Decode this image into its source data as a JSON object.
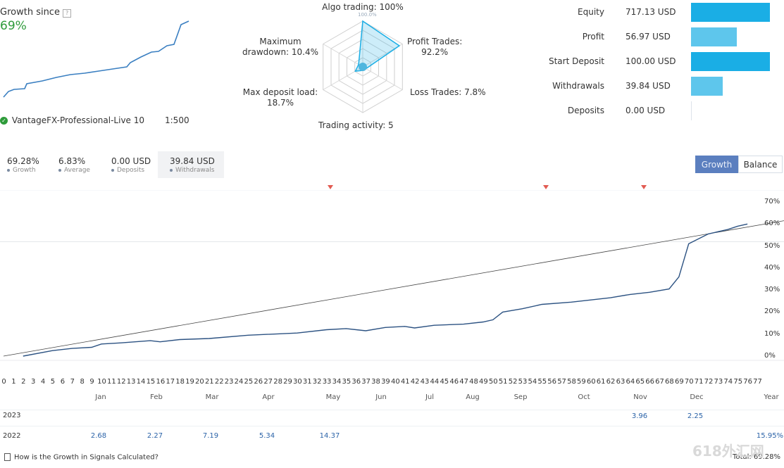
{
  "summary": {
    "growth_title": "Growth since",
    "growth_value": "69%",
    "account_name": "VantageFX-Professional-Live 10",
    "leverage": "1:500"
  },
  "radar": {
    "algo": "Algo trading: 100%",
    "algo_center": "100.0%",
    "profit_trades": "Profit Trades:\n92.2%",
    "loss_trades": "Loss Trades: 7.8%",
    "trading_activity": "Trading activity: 5",
    "max_deposit_load": "Max deposit load:\n18.7%",
    "max_drawdown": "Maximum\ndrawdown: 10.4%",
    "values": [
      1.0,
      0.922,
      0.078,
      0.05,
      0.187,
      0.104
    ]
  },
  "stats": [
    {
      "label": "Equity",
      "value": "717.13 USD",
      "fill": 1.0
    },
    {
      "label": "Profit",
      "value": "56.97 USD",
      "fill": 0.58
    },
    {
      "label": "Start Deposit",
      "value": "100.00 USD",
      "fill": 1.0
    },
    {
      "label": "Withdrawals",
      "value": "39.84 USD",
      "fill": 0.4
    },
    {
      "label": "Deposits",
      "value": "0.00 USD",
      "fill": 0.0
    }
  ],
  "stat_color": "#1aaee5",
  "kpis": [
    {
      "value": "69.28%",
      "caption": "Growth"
    },
    {
      "value": "6.83%",
      "caption": "Average"
    },
    {
      "value": "0.00 USD",
      "caption": "Deposits"
    },
    {
      "value": "39.84 USD",
      "caption": "Withdrawals"
    }
  ],
  "tabs": {
    "growth": "Growth",
    "balance": "Balance"
  },
  "chart_data": {
    "type": "line",
    "x_label_ticks": [
      "0",
      "1",
      "2",
      "3",
      "4",
      "5",
      "6",
      "7",
      "8",
      "9",
      "10",
      "11",
      "12",
      "13",
      "14",
      "15",
      "16",
      "17",
      "18",
      "19",
      "20",
      "21",
      "22",
      "23",
      "24",
      "25",
      "26",
      "27",
      "28",
      "29",
      "30",
      "31",
      "32",
      "33",
      "34",
      "35",
      "36",
      "37",
      "38",
      "39",
      "40",
      "41",
      "42",
      "43",
      "44",
      "45",
      "46",
      "47",
      "48",
      "49",
      "50",
      "51",
      "52",
      "53",
      "54",
      "55",
      "56",
      "57",
      "58",
      "59",
      "60",
      "61",
      "62",
      "63",
      "64",
      "65",
      "66",
      "67",
      "68",
      "69",
      "70",
      "71",
      "72",
      "73",
      "74",
      "75",
      "76",
      "77"
    ],
    "months": [
      "Jan",
      "Feb",
      "Mar",
      "Apr",
      "May",
      "Jun",
      "Jul",
      "Aug",
      "Sep",
      "Oct",
      "Nov",
      "Dec",
      "Year"
    ],
    "y_ticks": [
      "70%",
      "60%",
      "50%",
      "40%",
      "30%",
      "20%",
      "10%",
      "0%"
    ],
    "ylim": [
      0,
      70
    ],
    "series": [
      {
        "values": [
          [
            2,
            0
          ],
          [
            5,
            2.5
          ],
          [
            7,
            3.5
          ],
          [
            9,
            4
          ],
          [
            10,
            5.5
          ],
          [
            12,
            6
          ],
          [
            15,
            7
          ],
          [
            16,
            6.5
          ],
          [
            18,
            7.5
          ],
          [
            21,
            8
          ],
          [
            25,
            9.5
          ],
          [
            30,
            10.5
          ],
          [
            33,
            12
          ],
          [
            35,
            12.5
          ],
          [
            37,
            11.5
          ],
          [
            39,
            13
          ],
          [
            41,
            13.5
          ],
          [
            42,
            12.8
          ],
          [
            44,
            14
          ],
          [
            47,
            14.5
          ],
          [
            49,
            15.5
          ],
          [
            50,
            16.5
          ],
          [
            51,
            20
          ],
          [
            53,
            21.5
          ],
          [
            55,
            23.5
          ],
          [
            58,
            24.5
          ],
          [
            60,
            25.5
          ],
          [
            62,
            26.5
          ],
          [
            64,
            28
          ],
          [
            66,
            29
          ],
          [
            68,
            30.5
          ],
          [
            69,
            36
          ],
          [
            70,
            51
          ],
          [
            72,
            55.5
          ],
          [
            74,
            57.5
          ],
          [
            75,
            59
          ],
          [
            76,
            60
          ]
        ]
      }
    ],
    "trend": [
      [
        0,
        0
      ],
      [
        77,
        60
      ]
    ]
  },
  "year_rows": {
    "row1_label": "2023",
    "row1_values": [
      "3.96",
      "2.25"
    ],
    "row2_label": "2022",
    "row2_values": [
      "2.68",
      "2.27",
      "7.19",
      "5.34",
      "14.37"
    ],
    "row2_total": "15.95%",
    "total_label": "Total: 69.28%"
  },
  "footer": {
    "help_link": "How is the Growth in Signals Calculated?"
  },
  "watermark": "618外汇网"
}
